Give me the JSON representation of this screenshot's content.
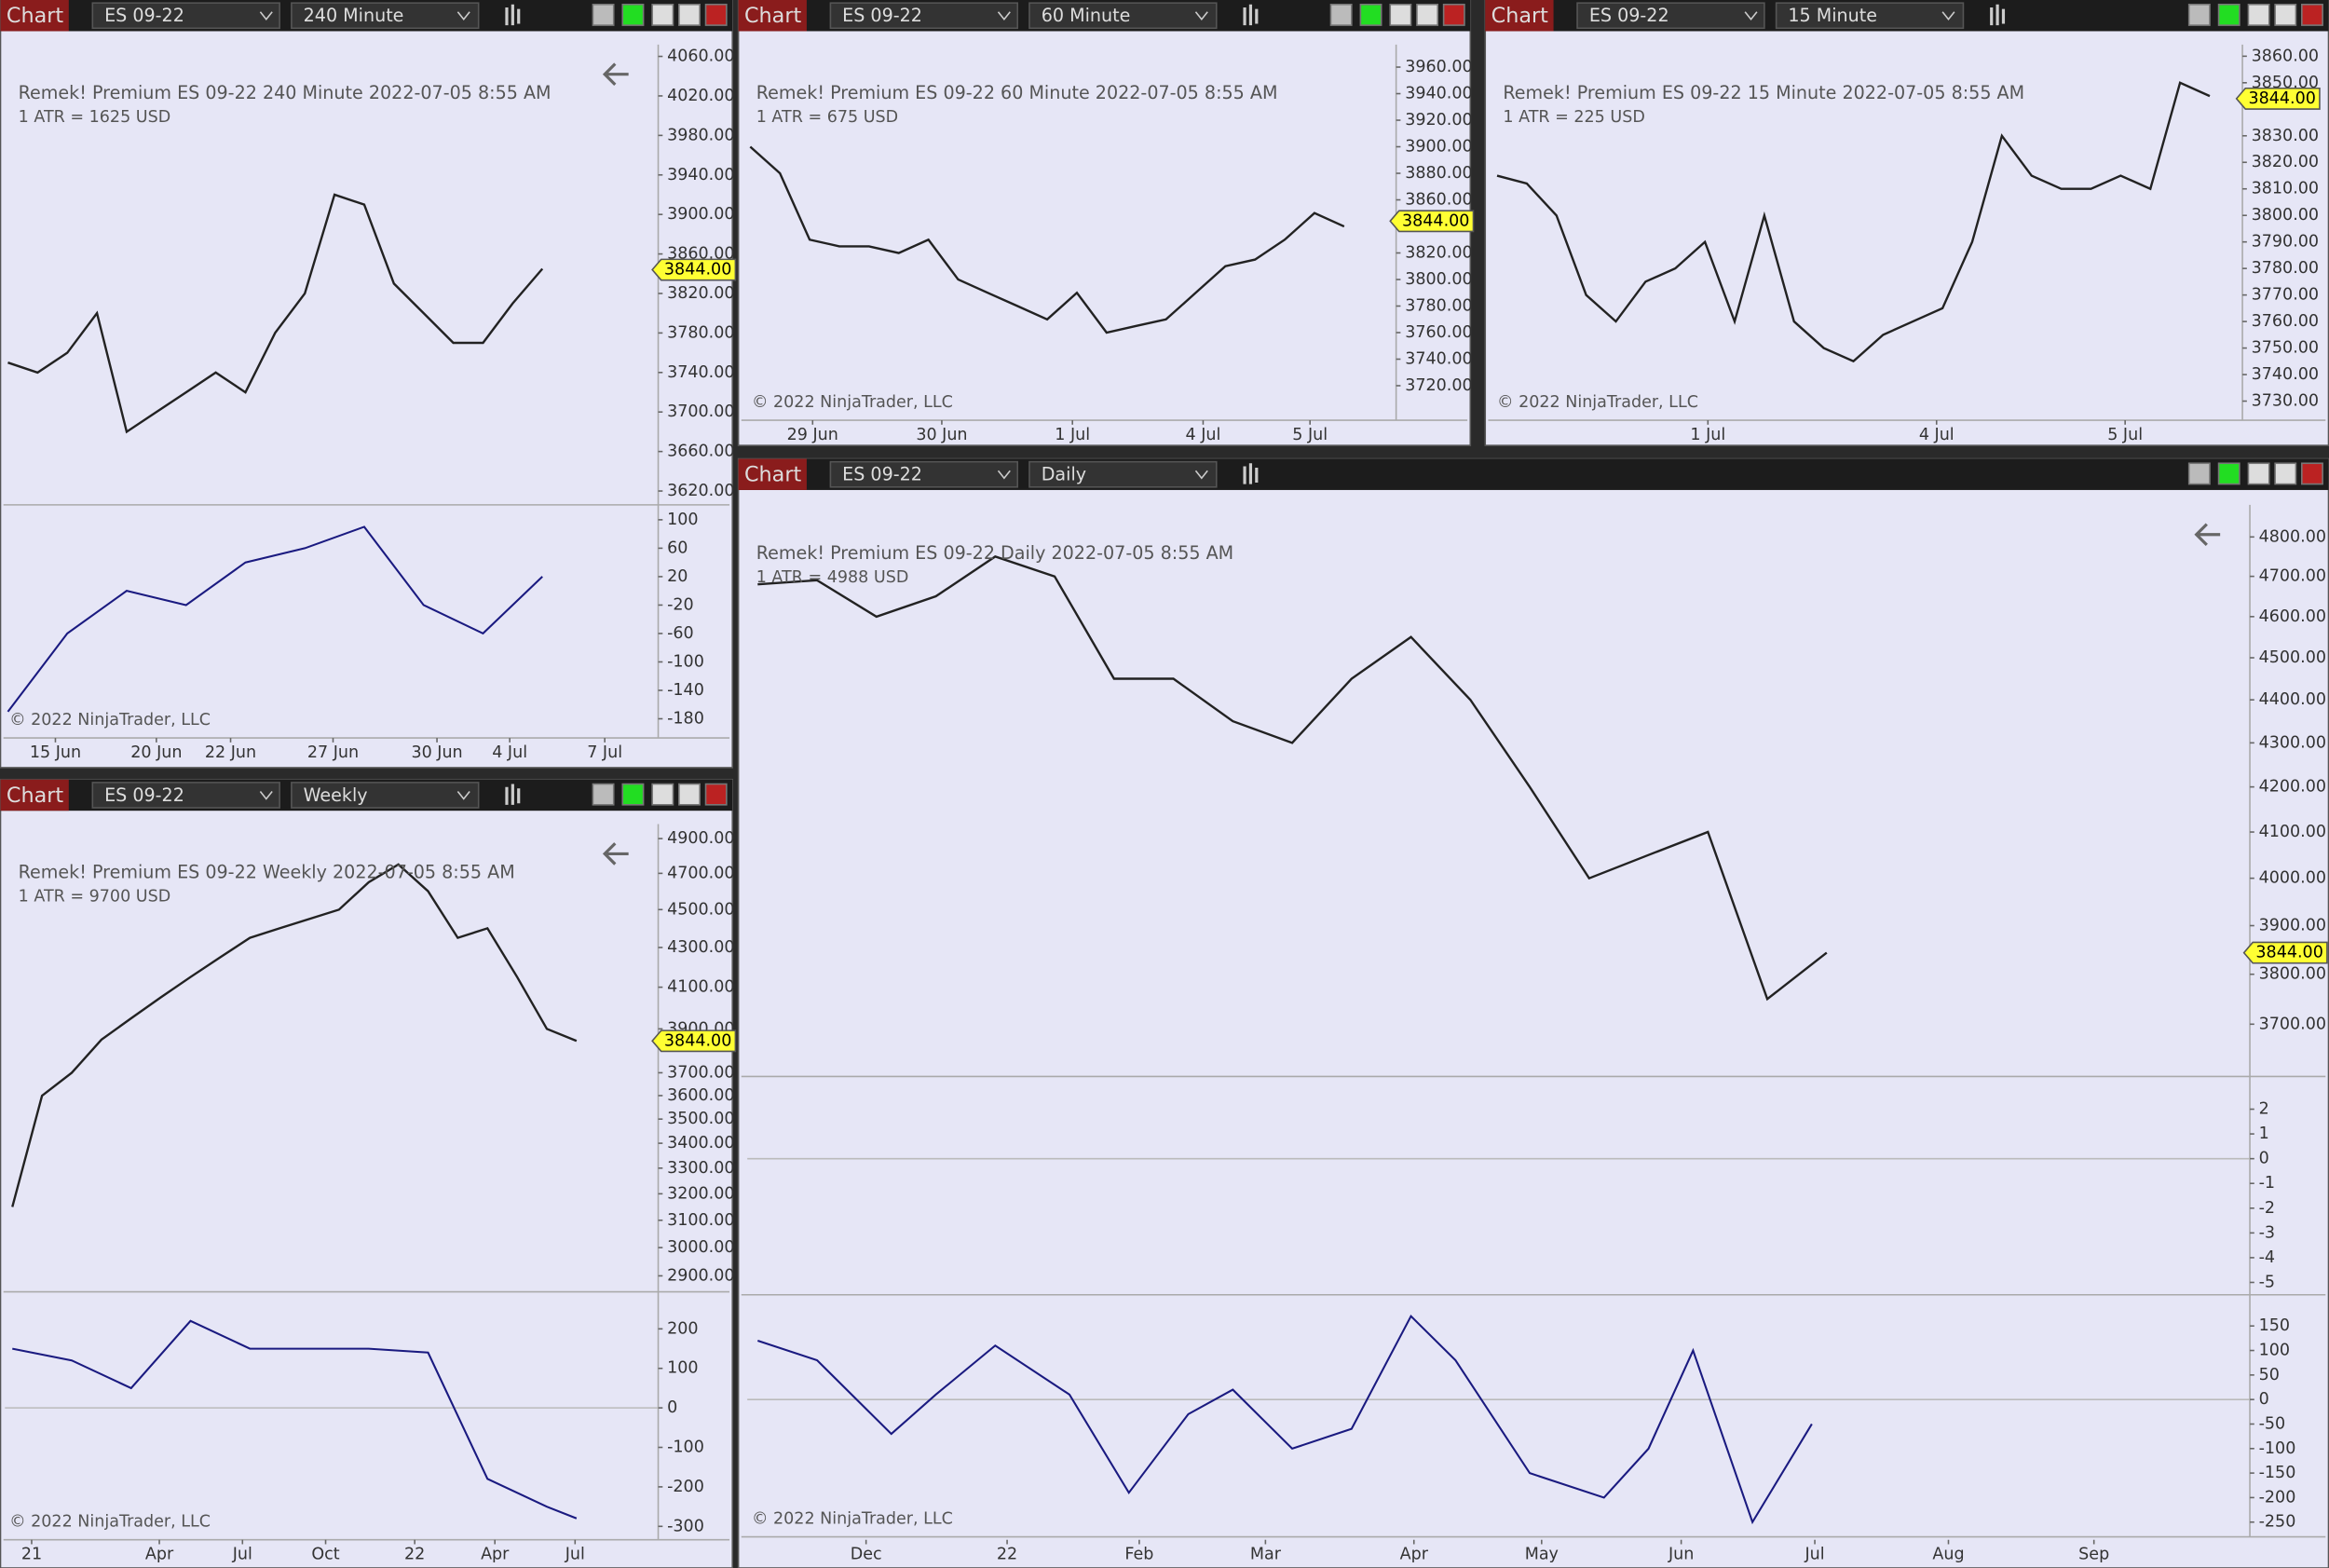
{
  "windows": [
    {
      "toolbar": {
        "label": "Chart",
        "instrument": "ES 09-22",
        "period": "240 Minute"
      },
      "header": "Remek!  Premium  ES 09-22  240 Minute  2022-07-05 8:55 AM",
      "atr": "1 ATR = 1625 USD",
      "copyright": "© 2022 NinjaTrader, LLC",
      "xlim": [
        -0.2,
        43.8
      ],
      "xticks": [
        {
          "value": 3.2,
          "label": "15 Jun"
        },
        {
          "value": 10,
          "label": "20 Jun"
        },
        {
          "value": 15,
          "label": "22 Jun"
        },
        {
          "value": 21.9,
          "label": "27 Jun"
        },
        {
          "value": 28.9,
          "label": "30 Jun"
        },
        {
          "value": 33.8,
          "label": "4 Jul"
        },
        {
          "value": 40.2,
          "label": "7 Jul"
        }
      ],
      "price": {
        "log": false,
        "ylim": [
          3606,
          4072
        ],
        "color": "#222222",
        "yticks": [
          {
            "value": 4060,
            "label": "4060.00"
          },
          {
            "value": 4020,
            "label": "4020.00"
          },
          {
            "value": 3980,
            "label": "3980.00"
          },
          {
            "value": 3940,
            "label": "3940.00"
          },
          {
            "value": 3900,
            "label": "3900.00"
          },
          {
            "value": 3860,
            "label": "3860.00"
          },
          {
            "value": 3820,
            "label": "3820.00"
          },
          {
            "value": 3780,
            "label": "3780.00"
          },
          {
            "value": 3740,
            "label": "3740.00"
          },
          {
            "value": 3700,
            "label": "3700.00"
          },
          {
            "value": 3660,
            "label": "3660.00"
          },
          {
            "value": 3620,
            "label": "3620.00"
          }
        ],
        "last": {
          "value": 3844,
          "label": "3844.00"
        },
        "x": [
          0,
          2,
          4,
          6,
          8,
          10,
          12,
          14,
          16,
          18,
          20,
          22,
          24,
          26,
          28,
          30,
          32,
          34,
          36
        ],
        "values": [
          3750,
          3740,
          3760,
          3800,
          3680,
          3700,
          3720,
          3740,
          3720,
          3780,
          3820,
          3920,
          3910,
          3830,
          3800,
          3770,
          3770,
          3810,
          3845
        ]
      },
      "oscillators": [
        {
          "ylim": [
            -207,
            121
          ],
          "yticks": [
            100,
            60,
            20,
            -20,
            -60,
            -100,
            -140,
            -180
          ],
          "color": "#1a1a80",
          "x": [
            0,
            4,
            8,
            12,
            16,
            20,
            24,
            28,
            32,
            36
          ],
          "values": [
            -170,
            -60,
            0,
            -20,
            40,
            60,
            90,
            -20,
            -60,
            20
          ]
        }
      ]
    },
    {
      "toolbar": {
        "label": "Chart",
        "instrument": "ES 09-22",
        "period": "60 Minute"
      },
      "header": "Remek!  Premium  ES 09-22  60 Minute  2022-07-05 8:55 AM",
      "atr": "1 ATR = 675 USD",
      "copyright": "© 2022 NinjaTrader, LLC",
      "xlim": [
        -0.2,
        43.5
      ],
      "xticks": [
        {
          "value": 4.2,
          "label": "29 Jun"
        },
        {
          "value": 12.9,
          "label": "30 Jun"
        },
        {
          "value": 21.7,
          "label": "1 Jul"
        },
        {
          "value": 30.5,
          "label": "4 Jul"
        },
        {
          "value": 37.7,
          "label": "5 Jul"
        }
      ],
      "price": {
        "log": false,
        "ylim": [
          3694,
          3977
        ],
        "color": "#222222",
        "yticks": [
          {
            "value": 3960,
            "label": "3960.00"
          },
          {
            "value": 3940,
            "label": "3940.00"
          },
          {
            "value": 3920,
            "label": "3920.00"
          },
          {
            "value": 3900,
            "label": "3900.00"
          },
          {
            "value": 3880,
            "label": "3880.00"
          },
          {
            "value": 3860,
            "label": "3860.00"
          },
          {
            "value": 3820,
            "label": "3820.00"
          },
          {
            "value": 3800,
            "label": "3800.00"
          },
          {
            "value": 3780,
            "label": "3780.00"
          },
          {
            "value": 3760,
            "label": "3760.00"
          },
          {
            "value": 3740,
            "label": "3740.00"
          },
          {
            "value": 3720,
            "label": "3720.00"
          }
        ],
        "last": {
          "value": 3844,
          "label": "3844.00"
        },
        "x": [
          0,
          2,
          4,
          6,
          8,
          10,
          12,
          14,
          16,
          18,
          20,
          22,
          24,
          26,
          28,
          30,
          32,
          34,
          36,
          38,
          40
        ],
        "values": [
          3900,
          3880,
          3830,
          3825,
          3825,
          3820,
          3830,
          3800,
          3790,
          3780,
          3770,
          3790,
          3760,
          3765,
          3770,
          3790,
          3810,
          3815,
          3830,
          3850,
          3840
        ]
      },
      "oscillators": []
    },
    {
      "toolbar": {
        "label": "Chart",
        "instrument": "ES 09-22",
        "period": "15 Minute"
      },
      "header": "Remek!  Premium  ES 09-22  15 Minute  2022-07-05 8:55 AM",
      "atr": "1 ATR = 225 USD",
      "copyright": "© 2022 NinjaTrader, LLC",
      "xlim": [
        -0.3,
        50.2
      ],
      "xticks": [
        {
          "value": 14.2,
          "label": "1 Jul"
        },
        {
          "value": 29.6,
          "label": "4 Jul"
        },
        {
          "value": 42.3,
          "label": "5 Jul"
        }
      ],
      "price": {
        "log": false,
        "ylim": [
          3722.8,
          3864.4
        ],
        "color": "#222222",
        "yticks": [
          {
            "value": 3860,
            "label": "3860.00"
          },
          {
            "value": 3850,
            "label": "3850.00"
          },
          {
            "value": 3830,
            "label": "3830.00"
          },
          {
            "value": 3820,
            "label": "3820.00"
          },
          {
            "value": 3810,
            "label": "3810.00"
          },
          {
            "value": 3800,
            "label": "3800.00"
          },
          {
            "value": 3790,
            "label": "3790.00"
          },
          {
            "value": 3780,
            "label": "3780.00"
          },
          {
            "value": 3770,
            "label": "3770.00"
          },
          {
            "value": 3760,
            "label": "3760.00"
          },
          {
            "value": 3750,
            "label": "3750.00"
          },
          {
            "value": 3740,
            "label": "3740.00"
          },
          {
            "value": 3730,
            "label": "3730.00"
          }
        ],
        "last": {
          "value": 3844,
          "label": "3844.00"
        },
        "x": [
          0,
          2,
          4,
          6,
          8,
          10,
          12,
          14,
          16,
          18,
          20,
          22,
          24,
          26,
          28,
          30,
          32,
          34,
          36,
          38,
          40,
          42,
          44,
          46,
          48
        ],
        "values": [
          3815,
          3812,
          3800,
          3770,
          3760,
          3775,
          3780,
          3790,
          3760,
          3800,
          3760,
          3750,
          3745,
          3755,
          3760,
          3765,
          3790,
          3830,
          3815,
          3810,
          3810,
          3815,
          3810,
          3850,
          3845
        ]
      },
      "oscillators": []
    },
    {
      "toolbar": {
        "label": "Chart",
        "instrument": "ES 09-22",
        "period": "Weekly"
      },
      "header": "Remek!  Premium  ES 09-22  Weekly  2022-07-05 8:55 AM",
      "atr": "1 ATR = 9700 USD",
      "copyright": "© 2022 NinjaTrader, LLC",
      "xlim": [
        -0.5,
        43.5
      ],
      "xticks": [
        {
          "value": 1.3,
          "label": "21"
        },
        {
          "value": 9.9,
          "label": "Apr"
        },
        {
          "value": 15.5,
          "label": "Jul"
        },
        {
          "value": 21.1,
          "label": "Oct"
        },
        {
          "value": 27.1,
          "label": "22"
        },
        {
          "value": 32.5,
          "label": "Apr"
        },
        {
          "value": 37.9,
          "label": "Jul"
        }
      ],
      "price": {
        "log": true,
        "ylim": [
          2845,
          4986
        ],
        "color": "#222222",
        "yticks": [
          {
            "value": 4900,
            "label": "4900.00"
          },
          {
            "value": 4700,
            "label": "4700.00"
          },
          {
            "value": 4500,
            "label": "4500.00"
          },
          {
            "value": 4300,
            "label": "4300.00"
          },
          {
            "value": 4100,
            "label": "4100.00"
          },
          {
            "value": 3900,
            "label": "3900.00"
          },
          {
            "value": 3700,
            "label": "3700.00"
          },
          {
            "value": 3600,
            "label": "3600.00"
          },
          {
            "value": 3500,
            "label": "3500.00"
          },
          {
            "value": 3400,
            "label": "3400.00"
          },
          {
            "value": 3300,
            "label": "3300.00"
          },
          {
            "value": 3200,
            "label": "3200.00"
          },
          {
            "value": 3100,
            "label": "3100.00"
          },
          {
            "value": 3000,
            "label": "3000.00"
          },
          {
            "value": 2900,
            "label": "2900.00"
          }
        ],
        "last": {
          "value": 3844,
          "label": "3844.00"
        },
        "x": [
          0,
          2,
          4,
          6,
          8,
          10,
          12,
          14,
          16,
          18,
          20,
          22,
          24,
          26,
          28,
          30,
          32,
          34,
          36,
          38
        ],
        "values": [
          3150,
          3600,
          3700,
          3850,
          3950,
          4050,
          4150,
          4250,
          4350,
          4400,
          4450,
          4500,
          4650,
          4750,
          4600,
          4350,
          4400,
          4150,
          3900,
          3844
        ]
      },
      "oscillators": [
        {
          "ylim": [
            -334,
            275
          ],
          "yticks": [
            200,
            100,
            0,
            -100,
            -200,
            -300
          ],
          "color": "#1a1a80",
          "x": [
            0,
            4,
            8,
            12,
            16,
            20,
            24,
            28,
            32,
            36,
            38
          ],
          "values": [
            150,
            120,
            50,
            220,
            150,
            150,
            150,
            140,
            -180,
            -250,
            -280
          ]
        }
      ]
    },
    {
      "toolbar": {
        "label": "Chart",
        "instrument": "ES 09-22",
        "period": "Daily"
      },
      "header": "Remek!  Premium  ES 09-22  Daily  2022-07-05 8:55 AM",
      "atr": "1 ATR = 4988 USD",
      "copyright": "© 2022 NinjaTrader, LLC",
      "xlim": [
        -0.7,
        100.5
      ],
      "xticks": [
        {
          "value": 7.3,
          "label": "Dec"
        },
        {
          "value": 16.8,
          "label": "22"
        },
        {
          "value": 25.7,
          "label": "Feb"
        },
        {
          "value": 34.2,
          "label": "Mar"
        },
        {
          "value": 44.2,
          "label": "Apr"
        },
        {
          "value": 52.8,
          "label": "May"
        },
        {
          "value": 62.2,
          "label": "Jun"
        },
        {
          "value": 71.2,
          "label": "Jul"
        },
        {
          "value": 80.2,
          "label": "Aug"
        },
        {
          "value": 90,
          "label": "Sep"
        }
      ],
      "price": {
        "log": true,
        "ylim": [
          3598,
          4883
        ],
        "color": "#222222",
        "yticks": [
          {
            "value": 4800,
            "label": "4800.00"
          },
          {
            "value": 4700,
            "label": "4700.00"
          },
          {
            "value": 4600,
            "label": "4600.00"
          },
          {
            "value": 4500,
            "label": "4500.00"
          },
          {
            "value": 4400,
            "label": "4400.00"
          },
          {
            "value": 4300,
            "label": "4300.00"
          },
          {
            "value": 4200,
            "label": "4200.00"
          },
          {
            "value": 4100,
            "label": "4100.00"
          },
          {
            "value": 4000,
            "label": "4000.00"
          },
          {
            "value": 3900,
            "label": "3900.00"
          },
          {
            "value": 3800,
            "label": "3800.00"
          },
          {
            "value": 3700,
            "label": "3700.00"
          }
        ],
        "last": {
          "value": 3844,
          "label": "3844.00"
        },
        "x": [
          0,
          4,
          8,
          12,
          16,
          20,
          24,
          28,
          32,
          36,
          40,
          44,
          48,
          52,
          56,
          60,
          64,
          68,
          72
        ],
        "values": [
          4680,
          4690,
          4600,
          4650,
          4750,
          4700,
          4450,
          4450,
          4350,
          4300,
          4450,
          4550,
          4400,
          4200,
          4000,
          4050,
          4100,
          3750,
          3844
        ]
      },
      "oscillators": [
        {
          "ylim": [
            -5.5,
            3.2
          ],
          "yticks": [
            2,
            1,
            0,
            -1,
            -2,
            -3,
            -4,
            -5
          ],
          "color": "#1a1a80"
        },
        {
          "ylim": [
            -280,
            204.5
          ],
          "yticks": [
            150,
            100,
            50,
            0,
            -50,
            -100,
            -150,
            -200,
            -250
          ],
          "color": "#1a1a80",
          "x": [
            0,
            4,
            9,
            12,
            16,
            21,
            25,
            29,
            32,
            36,
            40,
            44,
            47,
            52,
            57,
            60,
            63,
            67,
            71
          ],
          "values": [
            120,
            80,
            -70,
            10,
            110,
            10,
            -190,
            -30,
            20,
            -100,
            -60,
            170,
            80,
            -150,
            -200,
            -100,
            100,
            -250,
            -50
          ]
        }
      ]
    }
  ]
}
